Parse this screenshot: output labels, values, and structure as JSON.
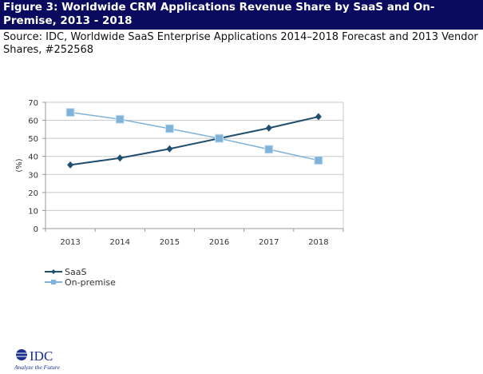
{
  "header": {
    "title": "Figure 3: Worldwide CRM Applications Revenue Share by SaaS and On-Premise, 2013 - 2018",
    "source": "Source: IDC, Worldwide SaaS Enterprise Applications 2014–2018 Forecast and 2013 Vendor Shares, #252568"
  },
  "chart_data": {
    "type": "line",
    "ylabel": "(%)",
    "ylim": [
      0,
      70
    ],
    "yticks": [
      "0",
      "10",
      "20",
      "30",
      "40",
      "50",
      "60",
      "70"
    ],
    "categories": [
      "2013",
      "2014",
      "2015",
      "2016",
      "2017",
      "2018"
    ],
    "grid": true,
    "legend_placement": "bottom-left",
    "series": [
      {
        "name": "SaaS",
        "marker": "diamond",
        "color": "#1f4e6e",
        "values": [
          35.3,
          39.1,
          44.2,
          50,
          55.7,
          62
        ]
      },
      {
        "name": "On-premise",
        "marker": "square",
        "color": "#7fb3d9",
        "values": [
          64.4,
          60.6,
          55.4,
          50,
          43.9,
          37.8
        ]
      }
    ]
  },
  "logo": {
    "name": "IDC",
    "tagline": "Analyze the Future"
  }
}
